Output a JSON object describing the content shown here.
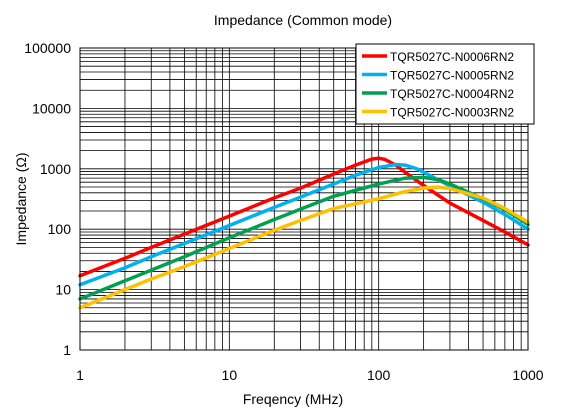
{
  "chart_data": {
    "type": "line",
    "title": "Impedance (Common mode)",
    "xlabel": "Freqency (MHz)",
    "ylabel": "Impedance (Ω)",
    "x_scale": "log",
    "y_scale": "log",
    "xlim": [
      1,
      1000
    ],
    "ylim": [
      1,
      100000
    ],
    "x_ticks": [
      1,
      10,
      100,
      1000
    ],
    "x_tick_labels": [
      "1",
      "10",
      "100",
      "1000"
    ],
    "y_ticks": [
      1,
      10,
      100,
      1000,
      10000,
      100000
    ],
    "y_tick_labels": [
      "1",
      "10",
      "100",
      "1000",
      "10000",
      "100000"
    ],
    "grid": true,
    "legend_position": "top-right",
    "series": [
      {
        "name": "TQR5027C-N0006RN2",
        "color": "#ff0000",
        "x": [
          1,
          2,
          3,
          5,
          10,
          20,
          30,
          50,
          70,
          90,
          100,
          110,
          130,
          150,
          200,
          300,
          500,
          700,
          1000
        ],
        "y": [
          17,
          33,
          50,
          83,
          165,
          330,
          480,
          820,
          1150,
          1450,
          1500,
          1430,
          1150,
          880,
          530,
          270,
          140,
          90,
          55
        ]
      },
      {
        "name": "TQR5027C-N0005RN2",
        "color": "#00b0f0",
        "x": [
          1,
          2,
          3,
          5,
          10,
          20,
          30,
          50,
          70,
          100,
          130,
          150,
          180,
          200,
          300,
          500,
          700,
          1000
        ],
        "y": [
          12,
          23,
          35,
          58,
          115,
          230,
          340,
          560,
          780,
          1050,
          1180,
          1150,
          1000,
          880,
          520,
          280,
          175,
          100
        ]
      },
      {
        "name": "TQR5027C-N0004RN2",
        "color": "#00a050",
        "x": [
          1,
          2,
          3,
          5,
          10,
          20,
          30,
          50,
          100,
          150,
          200,
          250,
          300,
          500,
          700,
          1000
        ],
        "y": [
          7,
          14,
          21,
          35,
          72,
          145,
          215,
          350,
          560,
          700,
          720,
          660,
          560,
          320,
          210,
          120
        ]
      },
      {
        "name": "TQR5027C-N0003RN2",
        "color": "#ffc000",
        "x": [
          1,
          2,
          3,
          5,
          10,
          20,
          30,
          50,
          100,
          150,
          200,
          250,
          300,
          500,
          700,
          1000
        ],
        "y": [
          5,
          10,
          15,
          24,
          48,
          96,
          140,
          220,
          320,
          420,
          480,
          500,
          470,
          330,
          220,
          130
        ]
      }
    ]
  }
}
